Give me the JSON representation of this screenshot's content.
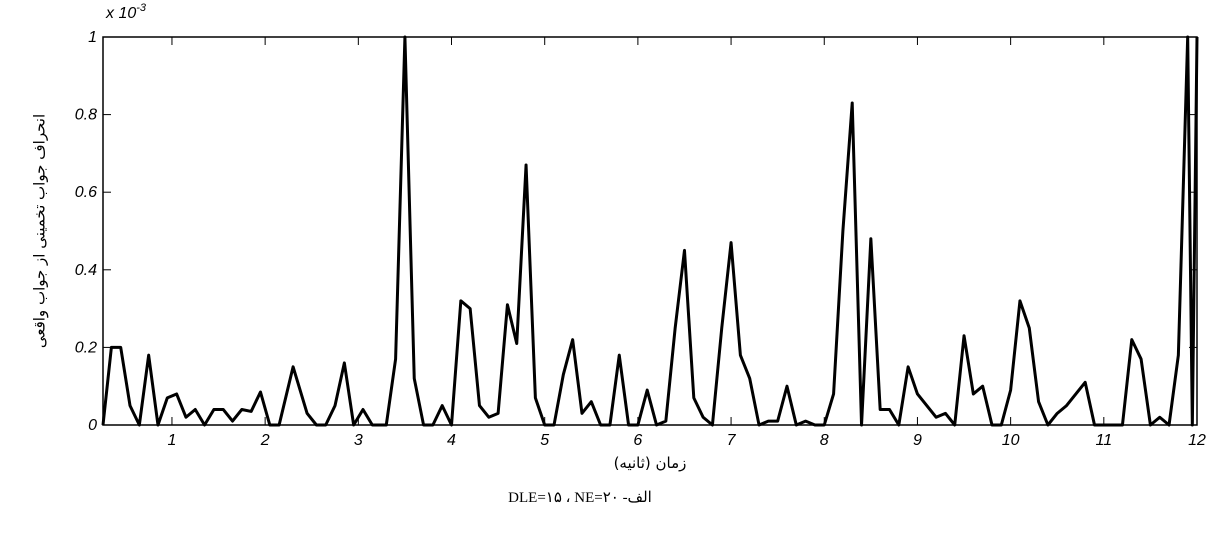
{
  "chart_data": {
    "type": "line",
    "y_axis_label": "انحراف جواب تخمینی از جواب واقعی",
    "x_axis_label": "زمان (ثانیه)",
    "caption": "الف- DLE=۱۵ ، NE=۲۰",
    "y_multiplier_base": "x 10",
    "y_multiplier_exponent": "-3",
    "xlim": [
      0.26,
      12
    ],
    "xticks": [
      1,
      2,
      3,
      4,
      5,
      6,
      7,
      8,
      9,
      10,
      11,
      12
    ],
    "ylim": [
      0,
      1
    ],
    "yticks": [
      0,
      0.2,
      0.4,
      0.6,
      0.8,
      1
    ],
    "grid": false,
    "series": [
      {
        "color": "#000000",
        "x": [
          0.26,
          0.35,
          0.45,
          0.55,
          0.65,
          0.75,
          0.85,
          0.95,
          1.05,
          1.15,
          1.25,
          1.35,
          1.45,
          1.55,
          1.65,
          1.75,
          1.85,
          1.95,
          2.05,
          2.15,
          2.3,
          2.45,
          2.55,
          2.65,
          2.75,
          2.85,
          2.95,
          3.05,
          3.15,
          3.3,
          3.4,
          3.5,
          3.6,
          3.7,
          3.8,
          3.9,
          4.0,
          4.1,
          4.2,
          4.3,
          4.4,
          4.5,
          4.6,
          4.7,
          4.8,
          4.9,
          5.0,
          5.1,
          5.2,
          5.3,
          5.4,
          5.5,
          5.6,
          5.7,
          5.8,
          5.9,
          6.0,
          6.1,
          6.2,
          6.3,
          6.4,
          6.5,
          6.6,
          6.7,
          6.8,
          6.9,
          7.0,
          7.1,
          7.2,
          7.3,
          7.4,
          7.5,
          7.6,
          7.7,
          7.8,
          7.9,
          8.0,
          8.1,
          8.2,
          8.3,
          8.4,
          8.5,
          8.6,
          8.7,
          8.8,
          8.9,
          9.0,
          9.1,
          9.2,
          9.3,
          9.4,
          9.5,
          9.6,
          9.7,
          9.8,
          9.9,
          10.0,
          10.1,
          10.2,
          10.3,
          10.4,
          10.5,
          10.6,
          10.7,
          10.8,
          10.9,
          11.0,
          11.1,
          11.2,
          11.3,
          11.4,
          11.5,
          11.6,
          11.7,
          11.8,
          11.9,
          11.95,
          12.0
        ],
        "values": [
          0.0,
          0.2,
          0.2,
          0.05,
          0.0,
          0.18,
          0.0,
          0.07,
          0.08,
          0.02,
          0.04,
          0.0,
          0.04,
          0.04,
          0.01,
          0.04,
          0.035,
          0.085,
          0.0,
          0.0,
          0.15,
          0.03,
          0.0,
          0.0,
          0.05,
          0.16,
          0.0,
          0.04,
          0.0,
          0.0,
          0.17,
          1.0,
          0.12,
          0.0,
          0.0,
          0.05,
          0.0,
          0.32,
          0.3,
          0.05,
          0.02,
          0.03,
          0.31,
          0.21,
          0.67,
          0.07,
          0.0,
          0.0,
          0.13,
          0.22,
          0.03,
          0.06,
          0.0,
          0.0,
          0.18,
          0.0,
          0.0,
          0.09,
          0.0,
          0.01,
          0.25,
          0.45,
          0.07,
          0.02,
          0.0,
          0.25,
          0.47,
          0.18,
          0.12,
          0.0,
          0.01,
          0.01,
          0.1,
          0.0,
          0.01,
          0.0,
          0.0,
          0.08,
          0.5,
          0.83,
          0.0,
          0.48,
          0.04,
          0.04,
          0.0,
          0.15,
          0.08,
          0.05,
          0.02,
          0.03,
          0.0,
          0.23,
          0.08,
          0.1,
          0.0,
          0.0,
          0.09,
          0.32,
          0.25,
          0.06,
          0.0,
          0.03,
          0.05,
          0.08,
          0.11,
          0.0,
          0.0,
          0.0,
          0.0,
          0.22,
          0.17,
          0.0,
          0.02,
          0.0,
          0.18,
          1.0,
          0.0,
          1.0
        ]
      }
    ]
  }
}
